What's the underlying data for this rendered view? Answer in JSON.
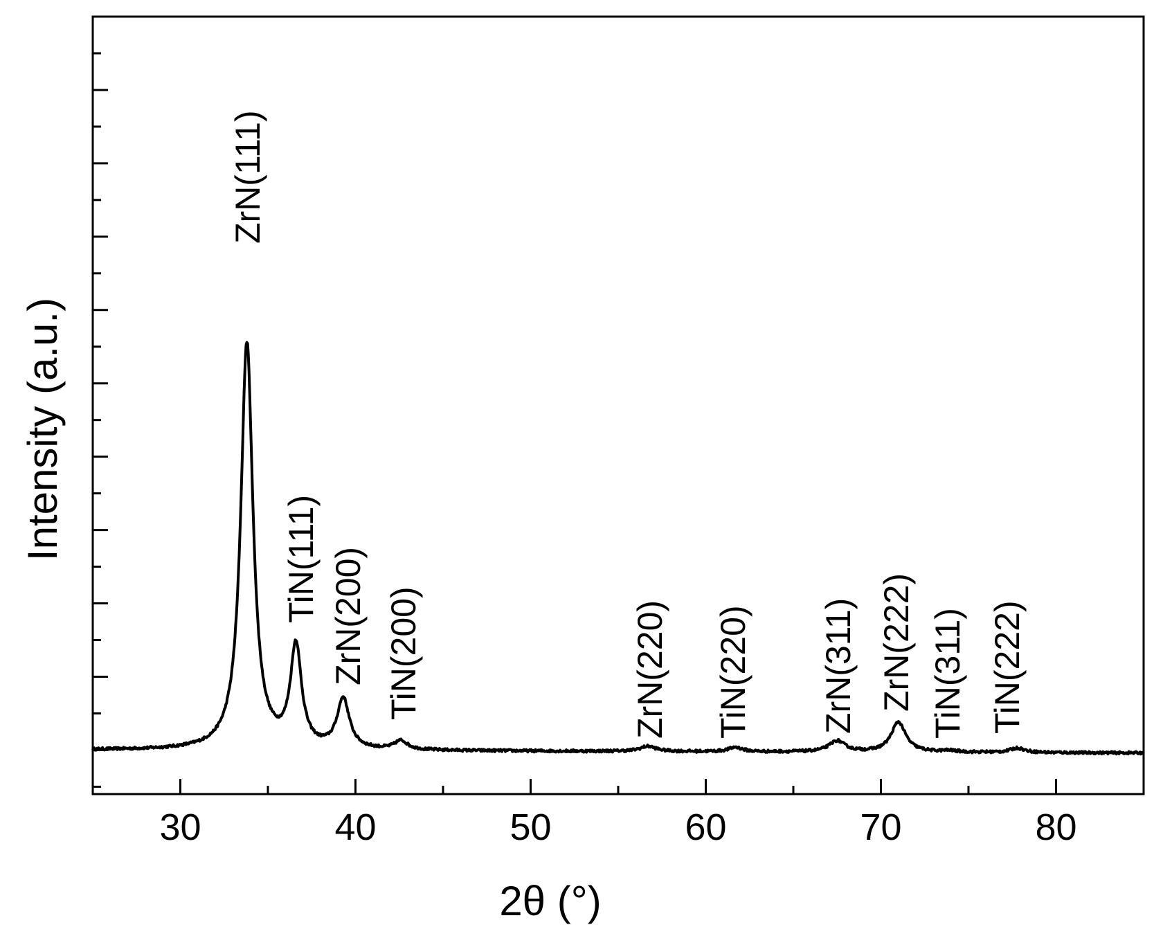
{
  "chart_data": {
    "type": "line",
    "xlabel": "2θ (°)",
    "ylabel": "Intensity (a.u.)",
    "xlim": [
      25,
      85
    ],
    "ylim": [
      -0.6,
      10
    ],
    "x_ticks": [
      30,
      40,
      50,
      60,
      70,
      80
    ],
    "x_minor_step": 5,
    "y_tick_step": 1,
    "y_minor_step": 0.5,
    "y_tick_labels_shown": false,
    "line_color": "#000000",
    "baseline": 0,
    "peaks": [
      {
        "label": "ZrN(111)",
        "x": 33.8,
        "y": 5.55
      },
      {
        "label": "TiN(111)",
        "x": 36.6,
        "y": 1.38
      },
      {
        "label": "ZrN(200)",
        "x": 39.3,
        "y": 0.68
      },
      {
        "label": "TiN(200)",
        "x": 42.6,
        "y": 0.12
      },
      {
        "label": "ZrN(220)",
        "x": 56.7,
        "y": 0.07
      },
      {
        "label": "TiN(220)",
        "x": 61.7,
        "y": 0.06
      },
      {
        "label": "ZrN(311)",
        "x": 67.5,
        "y": 0.15
      },
      {
        "label": "ZrN(222)",
        "x": 71.0,
        "y": 0.41
      },
      {
        "label": "TiN(311)",
        "x": 73.9,
        "y": 0.02
      },
      {
        "label": "TiN(222)",
        "x": 77.8,
        "y": 0.06
      }
    ]
  }
}
